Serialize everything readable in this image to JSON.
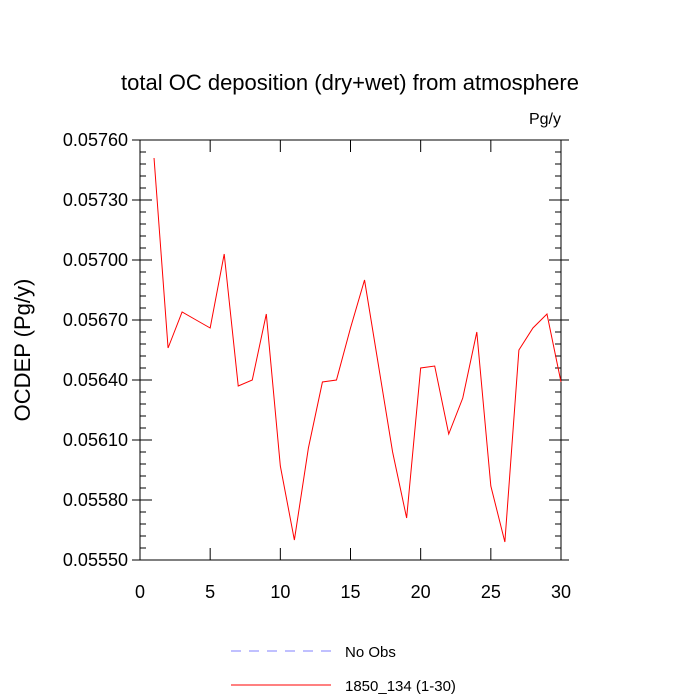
{
  "chart_data": {
    "type": "line",
    "title": "total OC deposition (dry+wet) from atmosphere",
    "units": "Pg/y",
    "xlabel": "",
    "ylabel": "OCDEP  (Pg/y)",
    "xlim": [
      0,
      30
    ],
    "ylim": [
      0.0555,
      0.0576
    ],
    "x_ticks": [
      0,
      5,
      10,
      15,
      20,
      25,
      30
    ],
    "x_tick_labels": [
      "0",
      "5",
      "10",
      "15",
      "20",
      "25",
      "30"
    ],
    "y_ticks": [
      0.0555,
      0.0558,
      0.0561,
      0.0564,
      0.0567,
      0.057,
      0.0573,
      0.0576
    ],
    "y_tick_labels": [
      "0.05550",
      "0.05580",
      "0.05610",
      "0.05640",
      "0.05670",
      "0.05700",
      "0.05730",
      "0.05760"
    ],
    "grid": false,
    "legend_position": "bottom",
    "legend": [
      {
        "label": "No Obs",
        "color": "#8080ff",
        "dash": "dashed"
      },
      {
        "label": "1850_134 (1-30)",
        "color": "#ff0000",
        "dash": "solid"
      }
    ],
    "series": [
      {
        "name": "1850_134 (1-30)",
        "color": "#ff0000",
        "x": [
          1,
          2,
          3,
          4,
          5,
          6,
          7,
          8,
          9,
          10,
          11,
          12,
          13,
          14,
          15,
          16,
          17,
          18,
          19,
          20,
          21,
          22,
          23,
          24,
          25,
          26,
          27,
          28,
          29,
          30
        ],
        "y": [
          0.05751,
          0.05656,
          0.05674,
          0.0567,
          0.05666,
          0.05703,
          0.05637,
          0.0564,
          0.05673,
          0.05597,
          0.0556,
          0.05606,
          0.05639,
          0.0564,
          0.05666,
          0.0569,
          0.05647,
          0.05604,
          0.05571,
          0.05646,
          0.05647,
          0.05613,
          0.05631,
          0.05664,
          0.05587,
          0.05559,
          0.05655,
          0.05666,
          0.05673,
          0.05639
        ]
      }
    ]
  }
}
